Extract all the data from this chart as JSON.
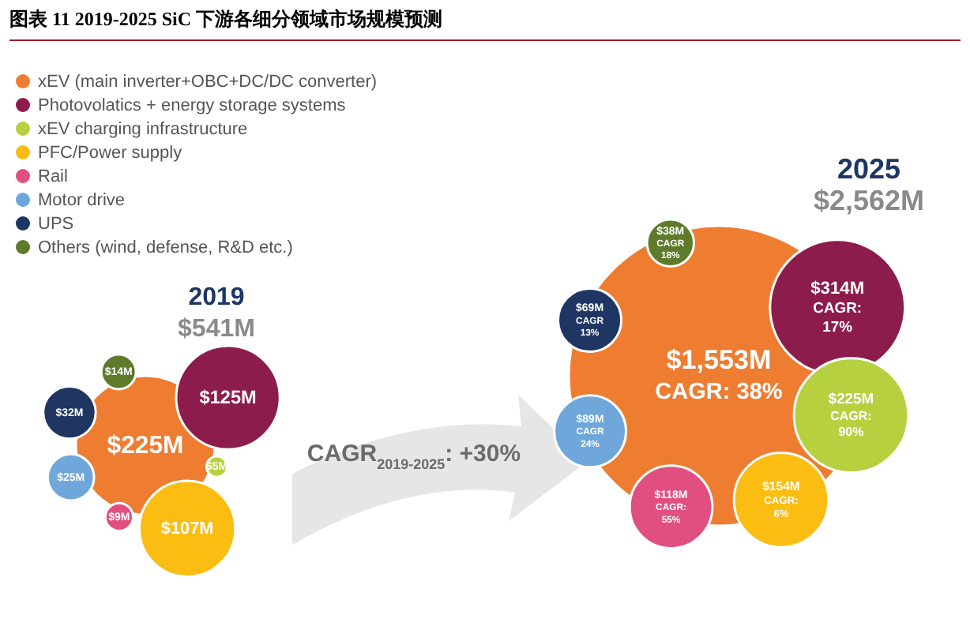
{
  "chart_data": {
    "type": "other",
    "title": "图表 11  2019-2025 SiC 下游各细分领域市场规模预测",
    "categories": [
      "2019",
      "2025"
    ],
    "series": [
      {
        "name": "xEV (main inverter+OBC+DC/DC converter)",
        "color": "#ee7d31",
        "values": [
          225,
          1553
        ],
        "value_labels": [
          "$225M",
          "$1,553M"
        ]
      },
      {
        "name": "Photovolatics + energy storage systems",
        "color": "#8c1c4c",
        "values": [
          125,
          314
        ],
        "value_labels": [
          "$125M",
          "$314M"
        ]
      },
      {
        "name": "xEV charging infrastructure",
        "color": "#b7d03f",
        "values": [
          5,
          225
        ],
        "value_labels": [
          "$5M",
          "$225M"
        ]
      },
      {
        "name": "PFC/Power supply",
        "color": "#fbbd12",
        "values": [
          107,
          154
        ],
        "value_labels": [
          "$107M",
          "$154M"
        ]
      },
      {
        "name": "Rail",
        "color": "#e04f80",
        "values": [
          9,
          118
        ],
        "value_labels": [
          "$9M",
          "$118M"
        ]
      },
      {
        "name": "Motor drive",
        "color": "#6fa7db",
        "values": [
          25,
          89
        ],
        "value_labels": [
          "$25M",
          "$89M"
        ]
      },
      {
        "name": "UPS",
        "color": "#1f3663",
        "values": [
          32,
          69
        ],
        "value_labels": [
          "$32M",
          "$69M"
        ]
      },
      {
        "name": "Others (wind, defense, R&D etc.)",
        "color": "#5e7a2b",
        "values": [
          14,
          38
        ],
        "value_labels": [
          "$14M",
          "$38M"
        ]
      }
    ],
    "totals": [
      "$541M",
      "$2,562M"
    ],
    "legend": "top left",
    "annotations": [
      "CAGR$_{2019-2025}$: +30%",
      "CAGR: 38%",
      "CAGR: 17%",
      "CAGR: 90%",
      "CAGR: 6%",
      "CAGR: 55%",
      "CAGR 24%",
      "CAGR 13%",
      "CAGR 18%"
    ]
  }
}
